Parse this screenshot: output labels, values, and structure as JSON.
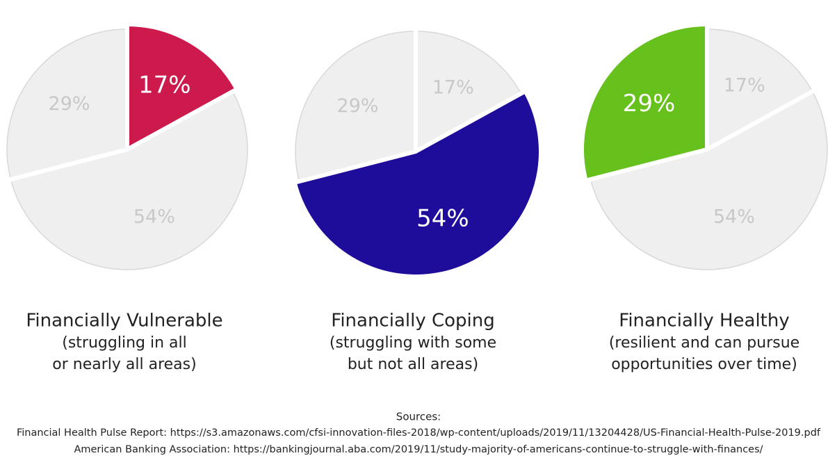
{
  "chart_data": [
    {
      "type": "pie",
      "title": "Financially Vulnerable",
      "subtitle": [
        "(struggling in all",
        "or nearly all areas)"
      ],
      "values": [
        17,
        54,
        29
      ],
      "value_labels": [
        "17%",
        "54%",
        "29%"
      ],
      "colors": [
        "#cc1a4c",
        "#efefef",
        "#efefef"
      ],
      "label_colors": [
        "#ffffff",
        "#c8c8c8",
        "#c8c8c8"
      ],
      "highlight": 0
    },
    {
      "type": "pie",
      "title": "Financially Coping",
      "subtitle": [
        "(struggling with some",
        "but not all areas)"
      ],
      "values": [
        17,
        54,
        29
      ],
      "value_labels": [
        "17%",
        "54%",
        "29%"
      ],
      "colors": [
        "#efefef",
        "#1e0c9a",
        "#efefef"
      ],
      "label_colors": [
        "#c8c8c8",
        "#ffffff",
        "#c8c8c8"
      ],
      "highlight": 1
    },
    {
      "type": "pie",
      "title": "Financially Healthy",
      "subtitle": [
        "(resilient and can pursue",
        "opportunities over time)"
      ],
      "values": [
        17,
        54,
        29
      ],
      "value_labels": [
        "17%",
        "54%",
        "29%"
      ],
      "colors": [
        "#efefef",
        "#efefef",
        "#66c11c"
      ],
      "label_colors": [
        "#c8c8c8",
        "#c8c8c8",
        "#ffffff"
      ],
      "highlight": 2
    }
  ],
  "sources": {
    "title": "Sources:",
    "lines": [
      "Financial Health Pulse Report: https://s3.amazonaws.com/cfsi-innovation-files-2018/wp-content/uploads/2019/11/13204428/US-Financial-Health-Pulse-2019.pdf",
      "American Banking Association: https://bankingjournal.aba.com/2019/11/study-majority-of-americans-continue-to-struggle-with-finances/"
    ]
  }
}
